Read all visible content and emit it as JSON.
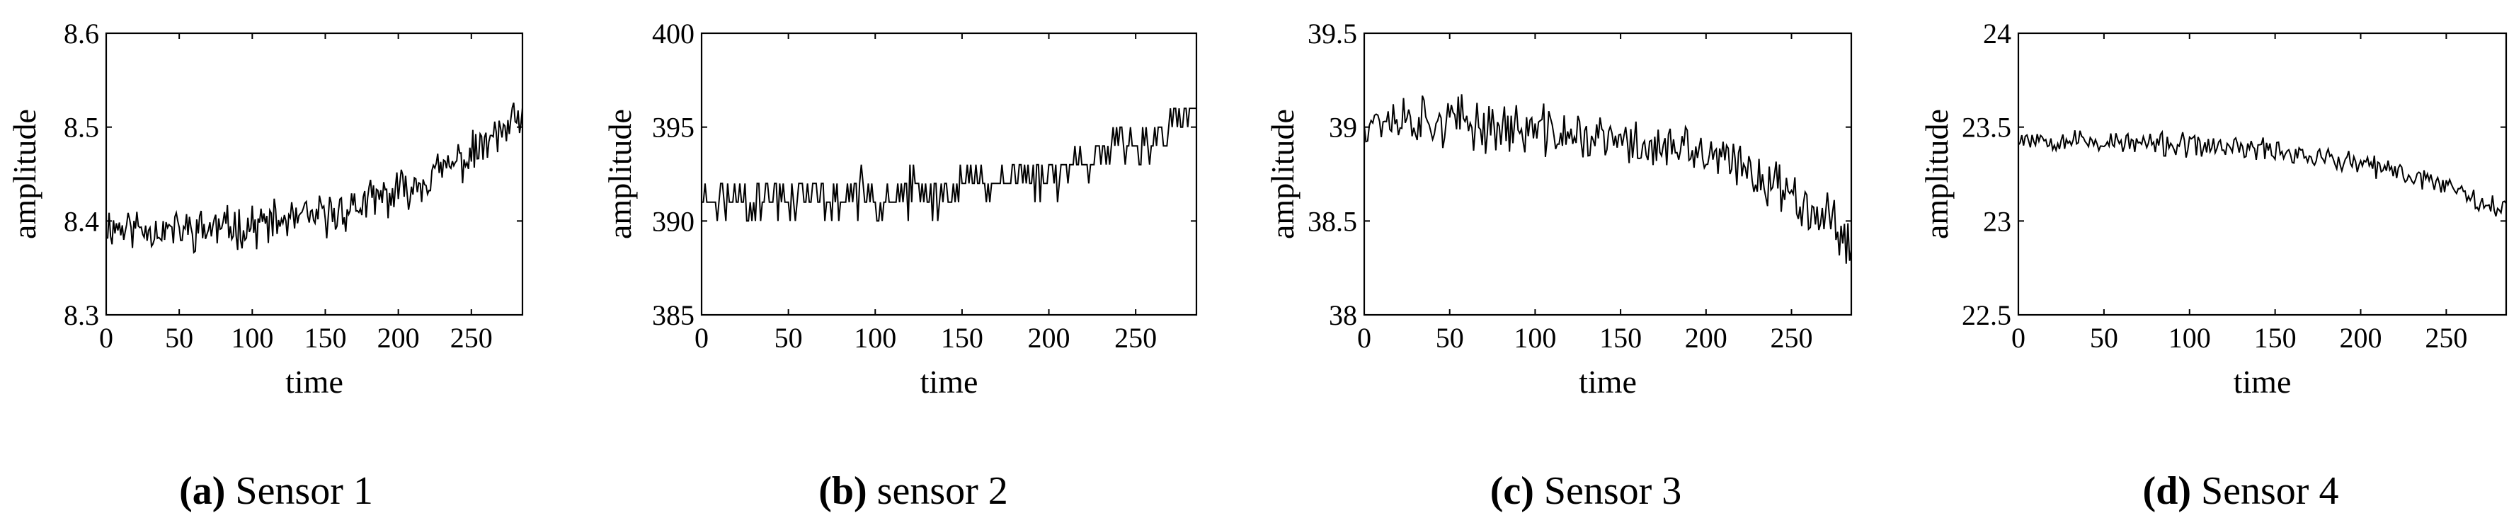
{
  "chart_data": [
    {
      "type": "line",
      "caption_tag": "(a)",
      "caption": "Sensor 1",
      "xlabel": "time",
      "ylabel": "amplitude",
      "xlim": [
        0,
        285
      ],
      "ylim": [
        8.3,
        8.6
      ],
      "xticks": [
        0,
        50,
        100,
        150,
        200,
        250
      ],
      "xtick_labels": [
        "0",
        "50",
        "100",
        "150",
        "200",
        "250"
      ],
      "yticks": [
        8.3,
        8.4,
        8.5,
        8.6
      ],
      "ytick_labels": [
        "8.3",
        "8.4",
        "8.5",
        "8.6"
      ],
      "trend": [
        [
          0,
          8.395
        ],
        [
          50,
          8.39
        ],
        [
          100,
          8.395
        ],
        [
          150,
          8.405
        ],
        [
          200,
          8.43
        ],
        [
          250,
          8.47
        ],
        [
          285,
          8.51
        ]
      ],
      "noise_amplitude": 0.018,
      "seed": 11,
      "line_color": "#000000"
    },
    {
      "type": "line",
      "caption_tag": "(b)",
      "caption": "sensor 2",
      "xlabel": "time",
      "ylabel": "amplitude",
      "xlim": [
        0,
        285
      ],
      "ylim": [
        385,
        400
      ],
      "xticks": [
        0,
        50,
        100,
        150,
        200,
        250
      ],
      "xtick_labels": [
        "0",
        "50",
        "100",
        "150",
        "200",
        "250"
      ],
      "yticks": [
        385,
        390,
        395,
        400
      ],
      "ytick_labels": [
        "385",
        "390",
        "395",
        "400"
      ],
      "trend": [
        [
          0,
          391.2
        ],
        [
          100,
          391.4
        ],
        [
          135,
          391.5
        ],
        [
          150,
          392
        ],
        [
          200,
          392.5
        ],
        [
          235,
          393.8
        ],
        [
          260,
          394.3
        ],
        [
          285,
          395.8
        ]
      ],
      "noise_amplitude": 0.9,
      "quantize": 1,
      "seed": 23,
      "line_color": "#000000"
    },
    {
      "type": "line",
      "caption_tag": "(c)",
      "caption": "Sensor 3",
      "xlabel": "time",
      "ylabel": "amplitude",
      "xlim": [
        0,
        285
      ],
      "ylim": [
        38,
        39.5
      ],
      "xticks": [
        0,
        50,
        100,
        150,
        200,
        250
      ],
      "xtick_labels": [
        "0",
        "50",
        "100",
        "150",
        "200",
        "250"
      ],
      "yticks": [
        38,
        38.5,
        39,
        39.5
      ],
      "ytick_labels": [
        "38",
        "38.5",
        "39",
        "39.5"
      ],
      "trend": [
        [
          0,
          39.05
        ],
        [
          25,
          39.05
        ],
        [
          60,
          39.02
        ],
        [
          100,
          38.98
        ],
        [
          150,
          38.92
        ],
        [
          200,
          38.85
        ],
        [
          230,
          38.75
        ],
        [
          260,
          38.6
        ],
        [
          285,
          38.4
        ]
      ],
      "noise_amplitude": 0.11,
      "seed": 37,
      "line_color": "#000000"
    },
    {
      "type": "line",
      "caption_tag": "(d)",
      "caption": "Sensor 4",
      "xlabel": "time",
      "ylabel": "amplitude",
      "xlim": [
        0,
        285
      ],
      "ylim": [
        22.5,
        24
      ],
      "xticks": [
        0,
        50,
        100,
        150,
        200,
        250
      ],
      "xtick_labels": [
        "0",
        "50",
        "100",
        "150",
        "200",
        "250"
      ],
      "yticks": [
        22.5,
        23,
        23.5,
        24
      ],
      "ytick_labels": [
        "22.5",
        "23",
        "23.5",
        "24"
      ],
      "trend": [
        [
          0,
          23.45
        ],
        [
          50,
          23.42
        ],
        [
          100,
          23.4
        ],
        [
          150,
          23.38
        ],
        [
          200,
          23.3
        ],
        [
          250,
          23.2
        ],
        [
          285,
          23.05
        ]
      ],
      "noise_amplitude": 0.05,
      "seed": 53,
      "line_color": "#000000"
    }
  ]
}
